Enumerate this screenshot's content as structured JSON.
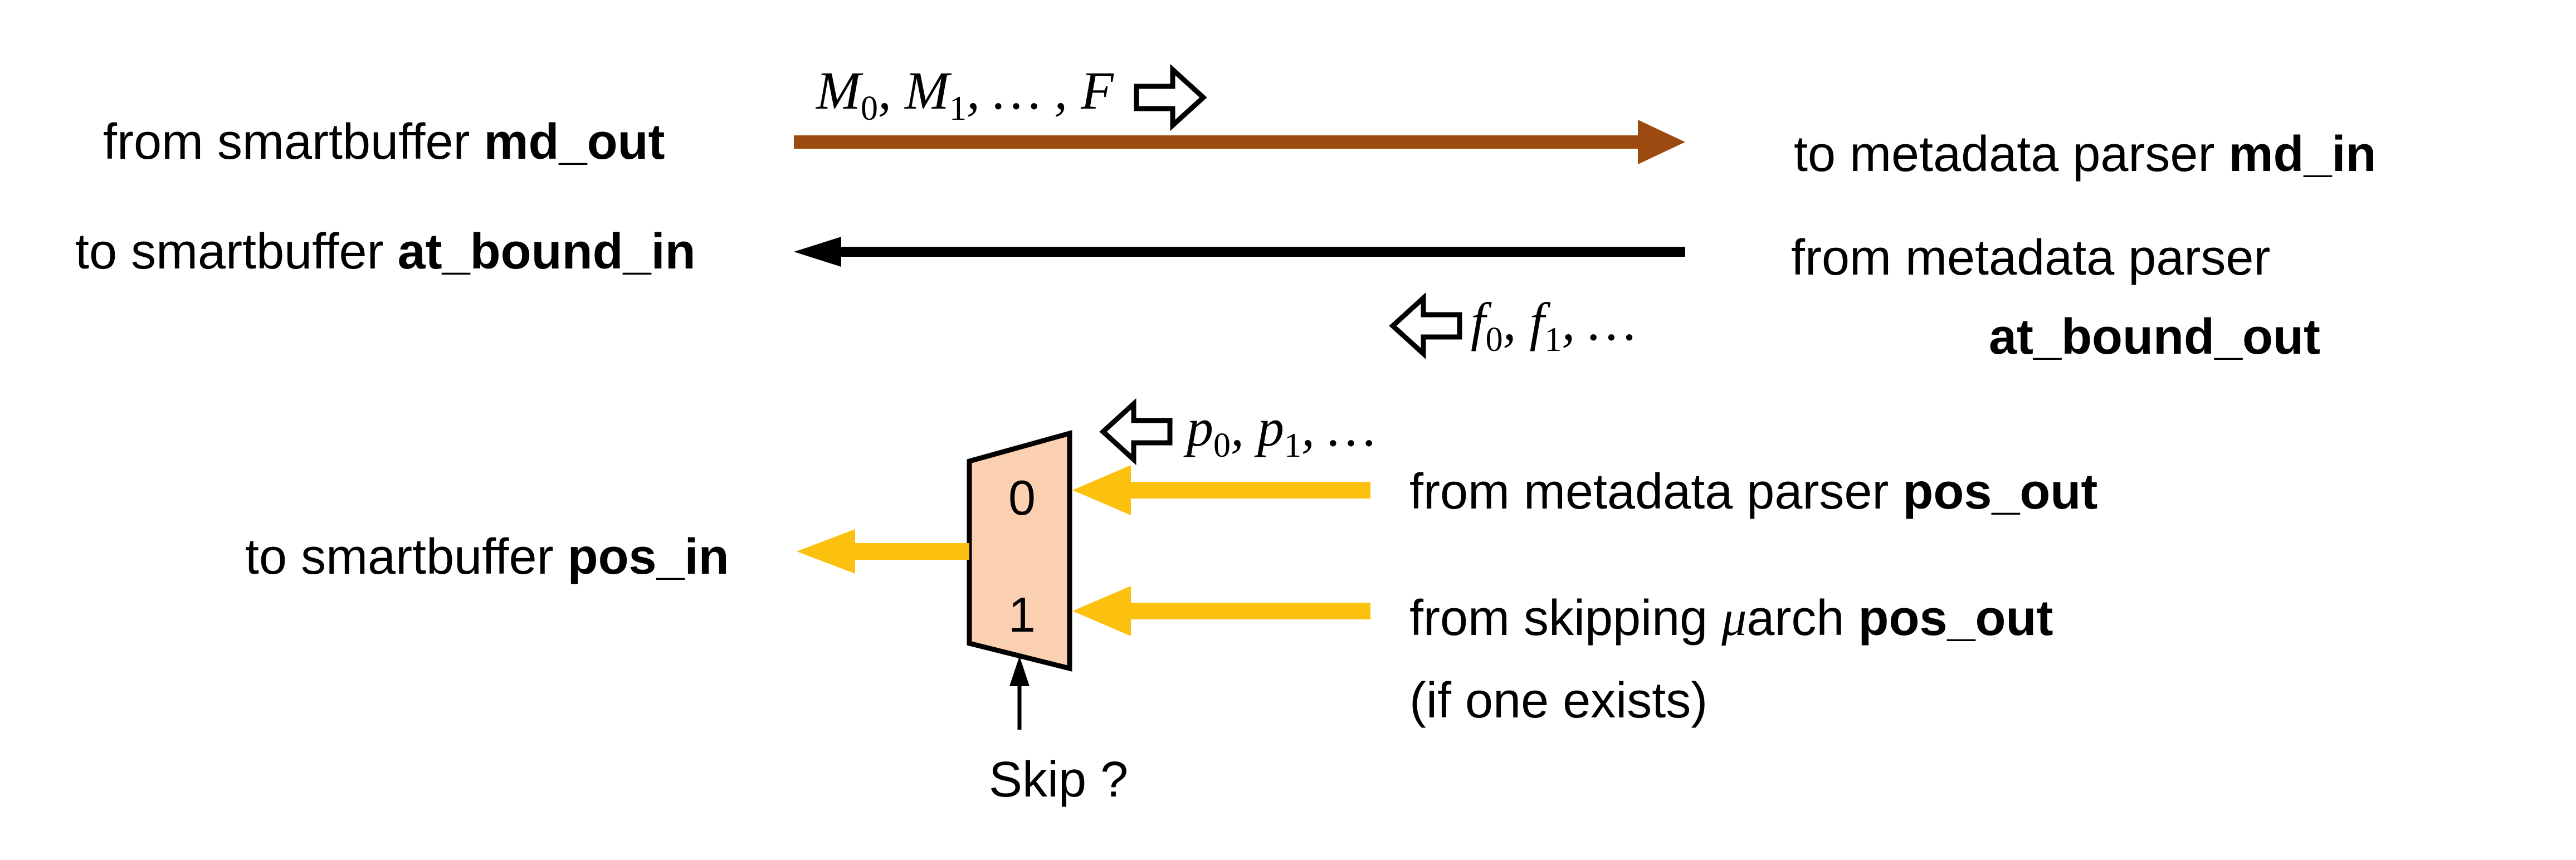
{
  "md": {
    "from_label": "from smartbuffer ",
    "from_port": "md_out",
    "to_label": "to metadata parser ",
    "to_port": "md_in",
    "sequence": {
      "M": "M",
      "M0_sub": "0",
      "M1_sub": "1",
      "tail": ", … , F"
    },
    "color": "#9c4a0f"
  },
  "at_bound": {
    "to_label": "to smartbuffer ",
    "to_port": "at_bound_in",
    "from_label": "from metadata parser",
    "from_port": "at_bound_out",
    "sequence": {
      "f": "f",
      "f0_sub": "0",
      "f1_sub": "1",
      "tail": ", …"
    },
    "color": "#000000"
  },
  "pos": {
    "sequence": {
      "p": "p",
      "p0_sub": "0",
      "p1_sub": "1",
      "tail": ", …"
    },
    "to_label": "to smartbuffer ",
    "to_port": "pos_in",
    "in0_label": "from metadata parser ",
    "in0_port": "pos_out",
    "in1_label": "from skipping ",
    "in1_mu": "μ",
    "in1_label_b": "arch ",
    "in1_port": "pos_out",
    "in1_note": "(if one exists)",
    "color": "#fcc10f"
  },
  "mux": {
    "input0": "0",
    "input1": "1",
    "select_label": "Skip ?",
    "fill": "#fad0b0"
  }
}
